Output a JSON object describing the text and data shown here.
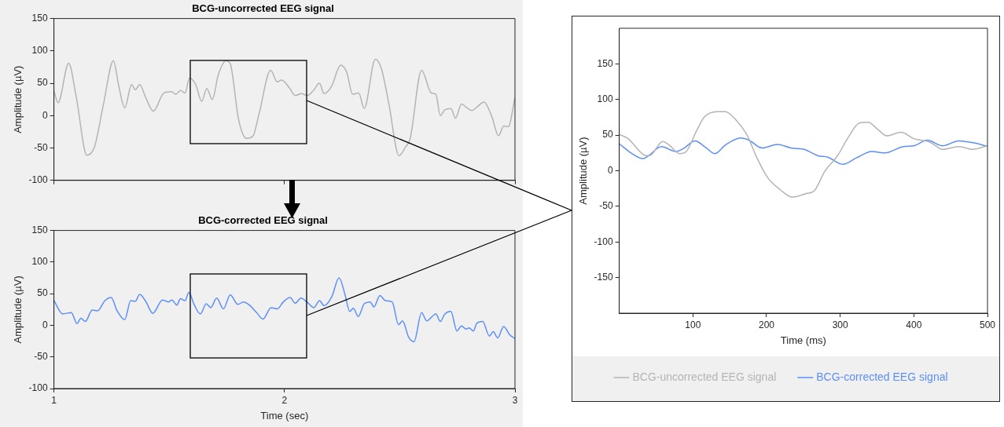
{
  "chart_data": [
    {
      "type": "line",
      "title": "BCG-uncorrected EEG signal",
      "ylabel": "Amplitude (µV)",
      "xlim": [
        1,
        3
      ],
      "xticks": [
        1,
        2,
        3
      ],
      "ylim": [
        -100,
        150
      ],
      "yticks": [
        -100,
        -50,
        0,
        50,
        100,
        150
      ],
      "tick_labels": "y",
      "marker": "none",
      "series": [
        {
          "color": "#b4b4b4",
          "x": [
            1.0,
            1.018,
            1.064,
            1.097,
            1.143,
            1.176,
            1.215,
            1.258,
            1.28,
            1.307,
            1.337,
            1.353,
            1.372,
            1.398,
            1.431,
            1.477,
            1.51,
            1.529,
            1.549,
            1.569,
            1.588,
            1.615,
            1.641,
            1.663,
            1.687,
            1.713,
            1.746,
            1.765,
            1.801,
            1.835,
            1.864,
            1.89,
            1.94,
            1.969,
            1.988,
            2.021,
            2.047,
            2.073,
            2.1,
            2.126,
            2.152,
            2.172,
            2.204,
            2.244,
            2.27,
            2.296,
            2.322,
            2.346,
            2.394,
            2.421,
            2.453,
            2.497,
            2.526,
            2.545,
            2.595,
            2.637,
            2.657,
            2.676,
            2.696,
            2.722,
            2.742,
            2.768,
            2.788,
            2.814,
            2.834,
            2.866,
            2.899,
            2.929,
            2.951,
            2.971,
            3.0
          ],
          "values": [
            38,
            20,
            81,
            28,
            -61,
            -48,
            18,
            85,
            48,
            12,
            48,
            40,
            48,
            28,
            7,
            35,
            37,
            33,
            39,
            35,
            58,
            48,
            22,
            42,
            25,
            63,
            85,
            80,
            -6,
            -35,
            -31,
            3,
            70,
            52,
            55,
            43,
            31,
            34,
            31,
            39,
            50,
            34,
            45,
            78,
            67,
            33,
            35,
            11,
            87,
            72,
            18,
            -62,
            -48,
            -36,
            70,
            35,
            33,
            0,
            9,
            11,
            -4,
            18,
            13,
            8,
            13,
            21,
            -1,
            -31,
            -16,
            -17,
            28
          ]
        }
      ]
    },
    {
      "type": "line",
      "title": "BCG-corrected EEG signal",
      "xlabel": "Time (sec)",
      "ylabel": "Amplitude (µV)",
      "xlim": [
        1,
        3
      ],
      "xticks": [
        1,
        2,
        3
      ],
      "ylim": [
        -100,
        150
      ],
      "yticks": [
        -100,
        -50,
        0,
        50,
        100,
        150
      ],
      "marker": "none",
      "series": [
        {
          "color": "#5b8ff9",
          "x": [
            1.0,
            1.038,
            1.075,
            1.1,
            1.117,
            1.136,
            1.166,
            1.189,
            1.221,
            1.248,
            1.274,
            1.307,
            1.333,
            1.353,
            1.372,
            1.398,
            1.429,
            1.471,
            1.497,
            1.512,
            1.533,
            1.549,
            1.569,
            1.585,
            1.608,
            1.635,
            1.661,
            1.68,
            1.706,
            1.735,
            1.765,
            1.798,
            1.822,
            1.848,
            1.877,
            1.907,
            1.942,
            1.969,
            1.995,
            2.024,
            2.047,
            2.071,
            2.1,
            2.128,
            2.152,
            2.172,
            2.205,
            2.237,
            2.263,
            2.283,
            2.299,
            2.32,
            2.346,
            2.372,
            2.388,
            2.414,
            2.438,
            2.467,
            2.495,
            2.512,
            2.539,
            2.562,
            2.595,
            2.617,
            2.657,
            2.676,
            2.696,
            2.722,
            2.748,
            2.768,
            2.788,
            2.801,
            2.82,
            2.834,
            2.86,
            2.889,
            2.906,
            2.925,
            2.951,
            2.977,
            3.0
          ],
          "values": [
            39,
            18,
            20,
            3,
            11,
            6,
            24,
            23,
            39,
            44,
            23,
            9,
            39,
            38,
            49,
            38,
            19,
            40,
            37,
            40,
            32,
            42,
            39,
            52,
            33,
            18,
            34,
            28,
            43,
            26,
            48,
            33,
            37,
            32,
            21,
            10,
            28,
            26,
            37,
            44,
            35,
            43,
            36,
            28,
            39,
            31,
            45,
            75,
            48,
            22,
            27,
            14,
            34,
            37,
            29,
            47,
            39,
            37,
            1,
            7,
            -19,
            -26,
            20,
            7,
            18,
            6,
            18,
            22,
            -9,
            -1,
            -6,
            -4,
            -9,
            3,
            6,
            -17,
            -10,
            -20,
            -2,
            -15,
            -21
          ]
        }
      ]
    },
    {
      "type": "line",
      "xlabel": "Time (ms)",
      "ylabel": "Amplitude (µV)",
      "xlim": [
        0,
        500
      ],
      "xticks": [
        100,
        200,
        300,
        400,
        500
      ],
      "ylim": [
        -200,
        200
      ],
      "yticks": [
        -150,
        -100,
        -50,
        0,
        50,
        100,
        150
      ],
      "marker": "none",
      "legend": "bottom",
      "series": [
        {
          "name": "BCG-uncorrected EEG signal",
          "color": "#b4b4b4",
          "x": [
            0,
            12,
            34,
            41,
            59,
            68,
            82,
            91,
            105,
            116,
            133,
            144,
            158,
            173,
            187,
            201,
            219,
            235,
            254,
            265,
            279,
            297,
            311,
            326,
            338,
            351,
            363,
            383,
            400,
            422,
            439,
            461,
            480,
            500
          ],
          "values": [
            51,
            45,
            22,
            21,
            41,
            36,
            24,
            27,
            56,
            76,
            83,
            83,
            72,
            51,
            18,
            -9,
            -27,
            -37,
            -32,
            -28,
            -1,
            22,
            47,
            67,
            68,
            58,
            49,
            54,
            45,
            40,
            30,
            34,
            30,
            35
          ]
        },
        {
          "name": "BCG-corrected EEG signal",
          "color": "#5b8ff9",
          "x": [
            0,
            16,
            32,
            41,
            57,
            77,
            87,
            103,
            117,
            130,
            144,
            165,
            176,
            194,
            215,
            233,
            251,
            270,
            283,
            304,
            322,
            343,
            361,
            386,
            400,
            418,
            439,
            461,
            482,
            500
          ],
          "values": [
            38,
            25,
            17,
            22,
            34,
            27,
            31,
            42,
            33,
            24,
            36,
            46,
            43,
            32,
            37,
            32,
            30,
            21,
            19,
            9,
            18,
            27,
            25,
            34,
            35,
            43,
            35,
            42,
            39,
            34
          ]
        }
      ]
    }
  ]
}
